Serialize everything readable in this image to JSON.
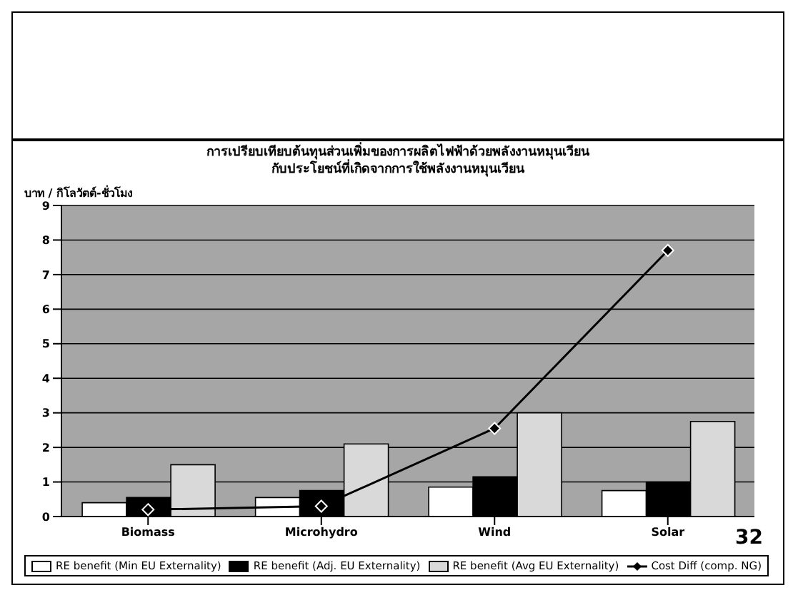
{
  "chart_data": {
    "type": "bar",
    "title": "การเปรียบเทียบต้นทุนส่วนเพิ่มของการผลิตไฟฟ้าด้วยพลังงานหมุนเวียน\nกับประโยชน์ที่เกิดจากการใช้พลังงานหมุนเวียน",
    "ylabel": "บาท / กิโลวัตต์-ชั่วโมง",
    "categories": [
      "Biomass",
      "Microhydro",
      "Wind",
      "Solar"
    ],
    "series": [
      {
        "name": "RE benefit (Min EU Externality)",
        "color": "#ffffff",
        "values": [
          0.4,
          0.55,
          0.85,
          0.75
        ]
      },
      {
        "name": "RE benefit (Adj. EU Externality)",
        "color": "#000000",
        "values": [
          0.55,
          0.75,
          1.15,
          1.0
        ]
      },
      {
        "name": "RE benefit (Avg EU Externality)",
        "color": "#d9d9d9",
        "values": [
          1.5,
          2.1,
          3.0,
          2.75
        ]
      },
      {
        "name": "Cost Diff (comp. NG)",
        "type": "line",
        "color": "#000000",
        "values": [
          0.2,
          0.3,
          2.55,
          7.7
        ],
        "marker": "diamond"
      }
    ],
    "ylim": [
      0,
      9
    ],
    "yticks": [
      0,
      1,
      2,
      3,
      4,
      5,
      6,
      7,
      8,
      9
    ],
    "grid": "y",
    "legend": "bottom",
    "annotations": [
      "32"
    ]
  }
}
